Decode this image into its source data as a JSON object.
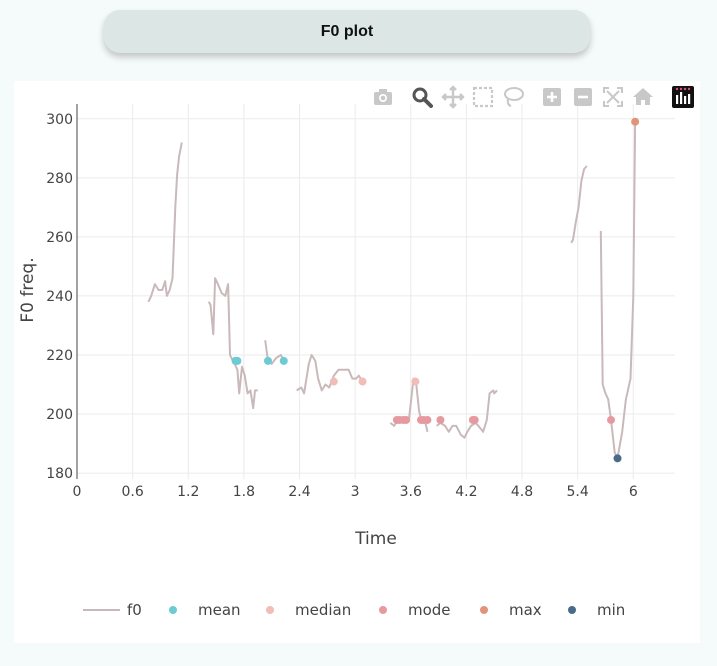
{
  "header": {
    "title": "F0 plot"
  },
  "modebar": {
    "buttons": [
      "camera-icon",
      "zoom-icon",
      "pan-icon",
      "box-select-icon",
      "lasso-icon",
      "zoom-in-icon",
      "zoom-out-icon",
      "autoscale-icon",
      "home-icon",
      "plotly-logo-icon"
    ]
  },
  "colors": {
    "f0": "#c9b9ba",
    "mean": "#6ccbd3",
    "median": "#f2bcb8",
    "mode": "#e69aa0",
    "max": "#e0957a",
    "min": "#4a6a8a",
    "grid": "#ebebeb",
    "axis": "#444444"
  },
  "chart_data": {
    "type": "line",
    "xlabel": "Time",
    "ylabel": "F0 freq.",
    "xlim": [
      0,
      6.45
    ],
    "ylim": [
      178,
      305
    ],
    "x_ticks": [
      "0",
      "0.6",
      "1.2",
      "1.8",
      "2.4",
      "3",
      "3.6",
      "4.2",
      "4.8",
      "5.4",
      "6"
    ],
    "x_tick_values": [
      0,
      0.6,
      1.2,
      1.8,
      2.4,
      3,
      3.6,
      4.2,
      4.8,
      5.4,
      6
    ],
    "y_ticks": [
      "180",
      "200",
      "220",
      "240",
      "260",
      "280",
      "300"
    ],
    "y_tick_values": [
      180,
      200,
      220,
      240,
      260,
      280,
      300
    ],
    "legend_position": "bottom",
    "series": [
      {
        "name": "f0",
        "kind": "line",
        "segments": [
          [
            [
              0.77,
              238
            ],
            [
              0.8,
              240
            ],
            [
              0.84,
              244
            ],
            [
              0.88,
              242
            ],
            [
              0.92,
              242
            ],
            [
              0.95,
              245
            ],
            [
              0.97,
              240
            ],
            [
              1.0,
              242
            ],
            [
              1.03,
              246
            ],
            [
              1.06,
              270
            ],
            [
              1.08,
              281
            ],
            [
              1.1,
              287
            ],
            [
              1.13,
              292
            ]
          ],
          [
            [
              1.42,
              238
            ],
            [
              1.44,
              237
            ],
            [
              1.47,
              227
            ],
            [
              1.49,
              246
            ],
            [
              1.52,
              244
            ],
            [
              1.56,
              241
            ],
            [
              1.6,
              240
            ],
            [
              1.63,
              244
            ],
            [
              1.65,
              220
            ],
            [
              1.68,
              218
            ],
            [
              1.7,
              217
            ],
            [
              1.73,
              215
            ],
            [
              1.75,
              207
            ],
            [
              1.78,
              216
            ],
            [
              1.81,
              213
            ],
            [
              1.84,
              207
            ],
            [
              1.87,
              208
            ],
            [
              1.9,
              202
            ],
            [
              1.92,
              208
            ],
            [
              1.95,
              208
            ]
          ],
          [
            [
              2.03,
              225
            ],
            [
              2.06,
              218
            ],
            [
              2.1,
              217
            ],
            [
              2.15,
              219
            ],
            [
              2.2,
              220
            ],
            [
              2.23,
              218
            ]
          ],
          [
            [
              2.37,
              208
            ],
            [
              2.42,
              209
            ],
            [
              2.45,
              207
            ],
            [
              2.5,
              217
            ],
            [
              2.53,
              220
            ],
            [
              2.57,
              218
            ],
            [
              2.6,
              212
            ],
            [
              2.64,
              208
            ],
            [
              2.68,
              210
            ],
            [
              2.72,
              209
            ],
            [
              2.77,
              213
            ],
            [
              2.82,
              215
            ],
            [
              2.88,
              215
            ],
            [
              2.93,
              215
            ],
            [
              2.97,
              212
            ],
            [
              3.01,
              212
            ],
            [
              3.04,
              213
            ],
            [
              3.08,
              211
            ]
          ],
          [
            [
              3.38,
              197
            ],
            [
              3.42,
              196
            ],
            [
              3.46,
              198
            ],
            [
              3.52,
              198
            ],
            [
              3.58,
              198
            ],
            [
              3.63,
              212
            ],
            [
              3.66,
              210
            ],
            [
              3.69,
              201
            ],
            [
              3.72,
              197
            ],
            [
              3.75,
              198
            ],
            [
              3.78,
              194
            ]
          ],
          [
            [
              3.88,
              196
            ],
            [
              3.92,
              197
            ],
            [
              3.97,
              196
            ],
            [
              4.01,
              194
            ],
            [
              4.05,
              196
            ],
            [
              4.09,
              196
            ],
            [
              4.14,
              193
            ],
            [
              4.18,
              192
            ],
            [
              4.21,
              194
            ],
            [
              4.25,
              196
            ],
            [
              4.3,
              197
            ],
            [
              4.33,
              196
            ],
            [
              4.38,
              194
            ],
            [
              4.42,
              198
            ],
            [
              4.45,
              207
            ],
            [
              4.49,
              208
            ],
            [
              4.5,
              207
            ],
            [
              4.53,
              208
            ]
          ],
          [
            [
              5.33,
              258
            ],
            [
              5.35,
              259
            ],
            [
              5.38,
              265
            ],
            [
              5.41,
              270
            ],
            [
              5.44,
              279
            ],
            [
              5.47,
              283
            ],
            [
              5.5,
              284
            ]
          ],
          [
            [
              5.65,
              262
            ],
            [
              5.67,
              210
            ],
            [
              5.7,
              207
            ],
            [
              5.73,
              205
            ],
            [
              5.76,
              198
            ],
            [
              5.8,
              187
            ],
            [
              5.83,
              185
            ],
            [
              5.88,
              194
            ],
            [
              5.92,
              205
            ],
            [
              5.97,
              212
            ],
            [
              6.0,
              240
            ],
            [
              6.02,
              298
            ]
          ]
        ]
      },
      {
        "name": "mean",
        "kind": "markers",
        "points": [
          [
            1.71,
            218
          ],
          [
            1.73,
            218
          ],
          [
            2.06,
            218
          ],
          [
            2.23,
            218
          ]
        ]
      },
      {
        "name": "median",
        "kind": "markers",
        "points": [
          [
            2.77,
            211
          ],
          [
            3.08,
            211
          ],
          [
            3.65,
            211
          ]
        ]
      },
      {
        "name": "mode",
        "kind": "markers",
        "points": [
          [
            3.45,
            198
          ],
          [
            3.48,
            198
          ],
          [
            3.52,
            198
          ],
          [
            3.55,
            198
          ],
          [
            3.71,
            198
          ],
          [
            3.74,
            198
          ],
          [
            3.78,
            198
          ],
          [
            3.92,
            198
          ],
          [
            4.27,
            198
          ],
          [
            4.29,
            198
          ],
          [
            5.76,
            198
          ]
        ]
      },
      {
        "name": "max",
        "kind": "markers",
        "points": [
          [
            6.02,
            299
          ]
        ]
      },
      {
        "name": "min",
        "kind": "markers",
        "points": [
          [
            5.83,
            185
          ]
        ]
      }
    ]
  }
}
